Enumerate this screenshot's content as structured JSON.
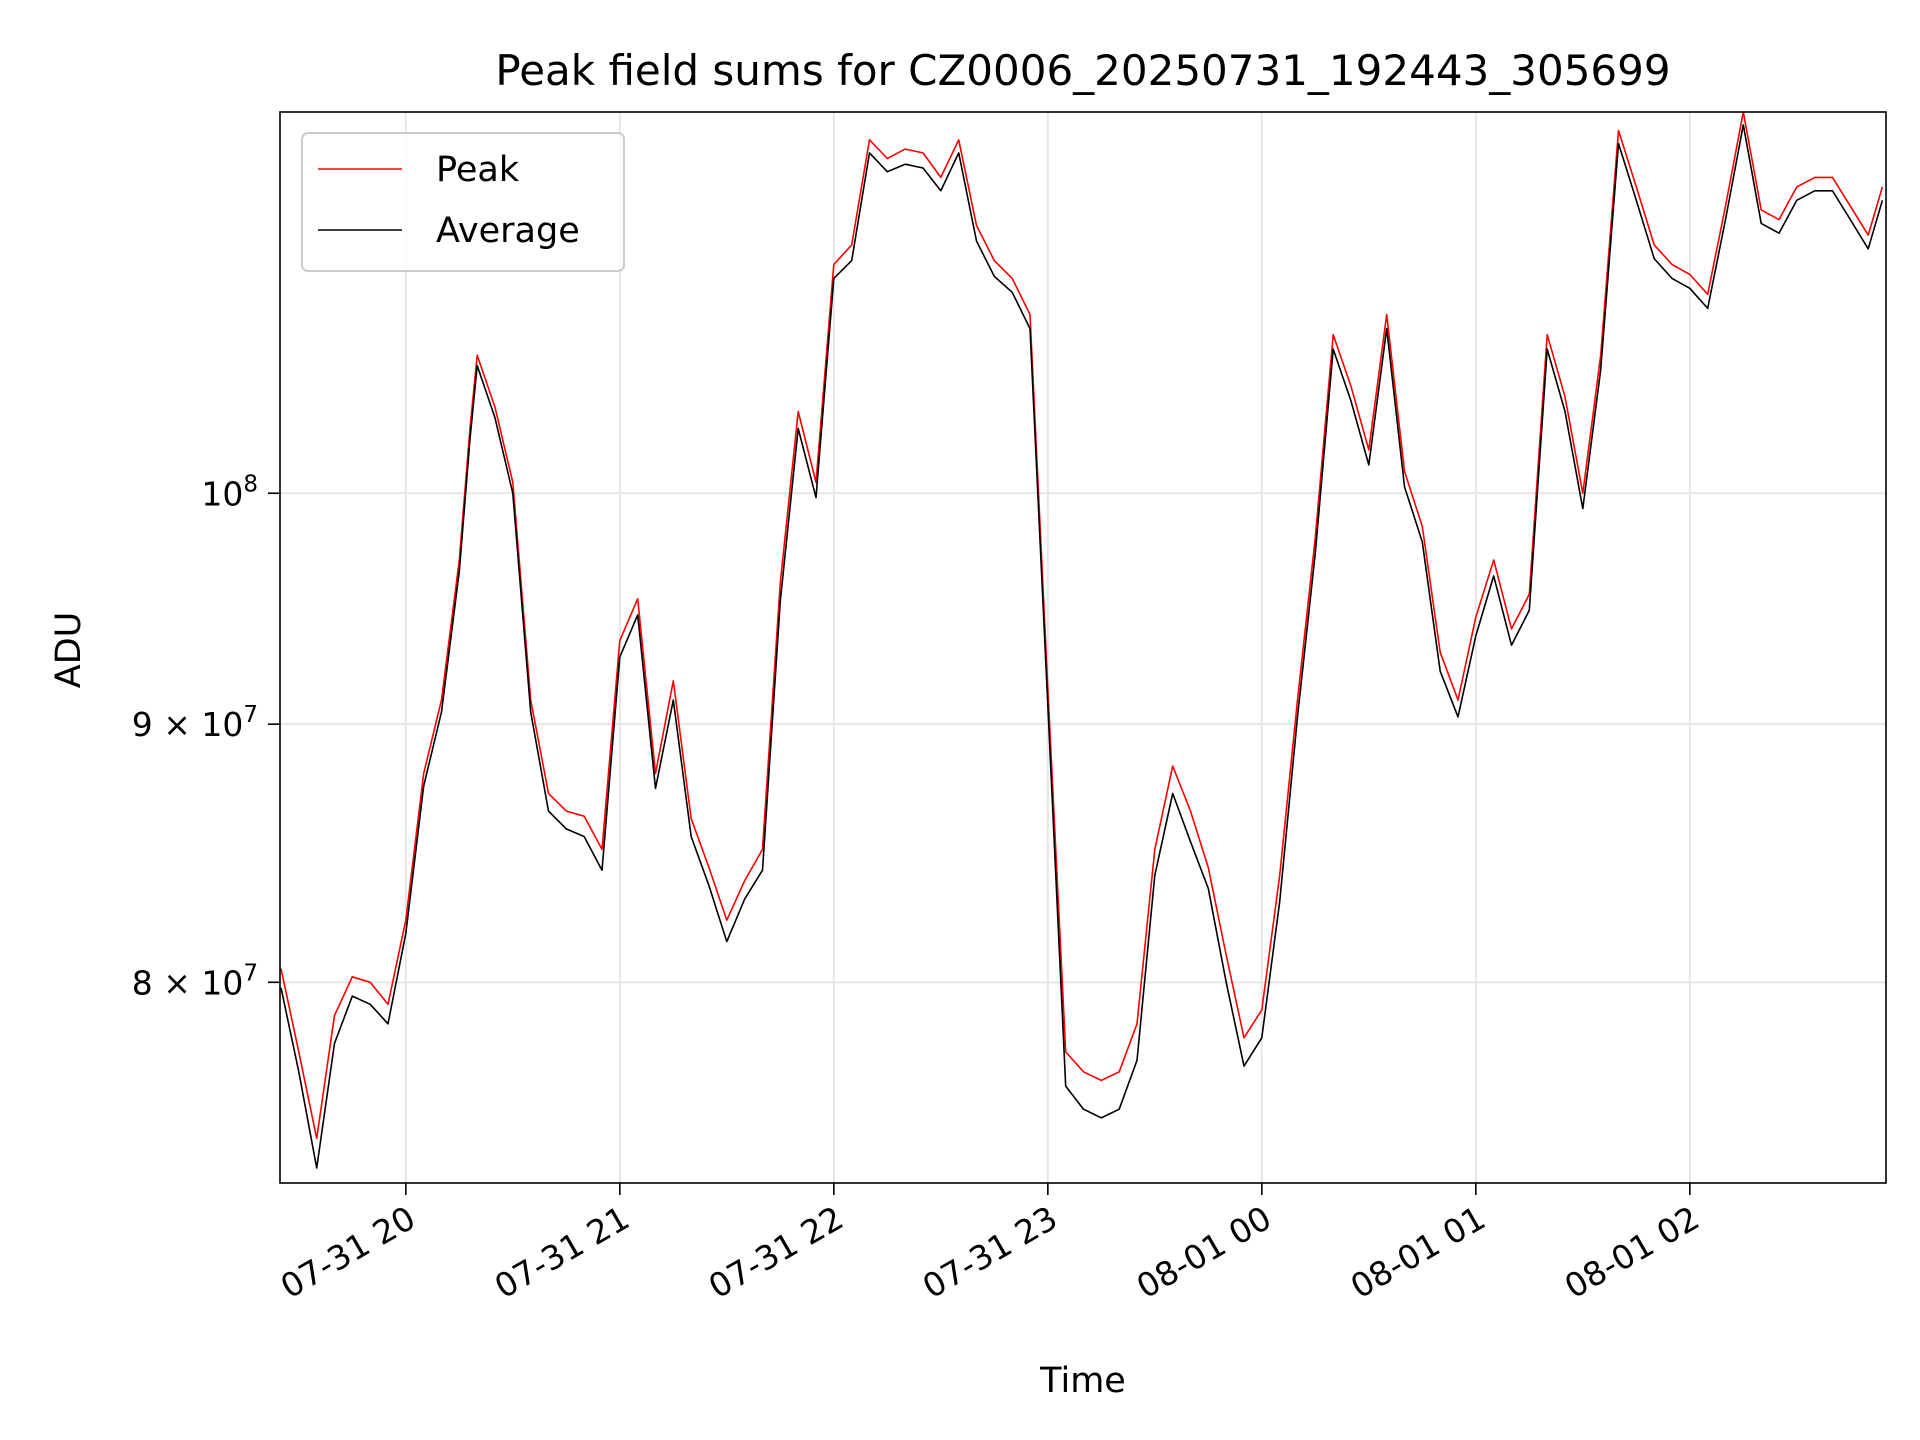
{
  "chart_data": {
    "type": "line",
    "title": "Peak field sums for CZ0006_20250731_192443_305699",
    "xlabel": "Time",
    "ylabel": "ADU",
    "yscale": "log",
    "grid": true,
    "legend_placement": "top-left",
    "xlim": [
      "2025-07-31 19:24:43",
      "2025-08-01 02:55:00"
    ],
    "ylim": [
      73000000,
      119000000
    ],
    "x_ticks": [
      {
        "t": "2025-07-31 20:00",
        "label": "07-31 20"
      },
      {
        "t": "2025-07-31 21:00",
        "label": "07-31 21"
      },
      {
        "t": "2025-07-31 22:00",
        "label": "07-31 22"
      },
      {
        "t": "2025-07-31 23:00",
        "label": "07-31 23"
      },
      {
        "t": "2025-08-01 00:00",
        "label": "08-01 00"
      },
      {
        "t": "2025-08-01 01:00",
        "label": "08-01 01"
      },
      {
        "t": "2025-08-01 02:00",
        "label": "08-01 02"
      }
    ],
    "y_ticks": [
      {
        "value": 80000000,
        "mant": "8",
        "exp": "7"
      },
      {
        "value": 90000000,
        "mant": "9",
        "exp": "7"
      },
      {
        "value": 100000000,
        "mant": "",
        "exp": "8"
      }
    ],
    "series": [
      {
        "name": "Peak",
        "color": "#ff0000",
        "x": [
          "2025-07-31 19:25",
          "2025-07-31 19:30",
          "2025-07-31 19:35",
          "2025-07-31 19:40",
          "2025-07-31 19:45",
          "2025-07-31 19:50",
          "2025-07-31 19:55",
          "2025-07-31 20:00",
          "2025-07-31 20:05",
          "2025-07-31 20:10",
          "2025-07-31 20:15",
          "2025-07-31 20:18",
          "2025-07-31 20:20",
          "2025-07-31 20:25",
          "2025-07-31 20:30",
          "2025-07-31 20:35",
          "2025-07-31 20:40",
          "2025-07-31 20:45",
          "2025-07-31 20:50",
          "2025-07-31 20:55",
          "2025-07-31 21:00",
          "2025-07-31 21:05",
          "2025-07-31 21:10",
          "2025-07-31 21:15",
          "2025-07-31 21:20",
          "2025-07-31 21:25",
          "2025-07-31 21:30",
          "2025-07-31 21:35",
          "2025-07-31 21:40",
          "2025-07-31 21:45",
          "2025-07-31 21:50",
          "2025-07-31 21:55",
          "2025-07-31 22:00",
          "2025-07-31 22:05",
          "2025-07-31 22:10",
          "2025-07-31 22:15",
          "2025-07-31 22:20",
          "2025-07-31 22:25",
          "2025-07-31 22:30",
          "2025-07-31 22:35",
          "2025-07-31 22:40",
          "2025-07-31 22:45",
          "2025-07-31 22:50",
          "2025-07-31 22:55",
          "2025-07-31 23:00",
          "2025-07-31 23:05",
          "2025-07-31 23:10",
          "2025-07-31 23:15",
          "2025-07-31 23:20",
          "2025-07-31 23:25",
          "2025-07-31 23:30",
          "2025-07-31 23:35",
          "2025-07-31 23:40",
          "2025-07-31 23:45",
          "2025-07-31 23:50",
          "2025-07-31 23:55",
          "2025-08-01 00:00",
          "2025-08-01 00:05",
          "2025-08-01 00:10",
          "2025-08-01 00:15",
          "2025-08-01 00:20",
          "2025-08-01 00:25",
          "2025-08-01 00:30",
          "2025-08-01 00:35",
          "2025-08-01 00:40",
          "2025-08-01 00:45",
          "2025-08-01 00:50",
          "2025-08-01 00:55",
          "2025-08-01 01:00",
          "2025-08-01 01:05",
          "2025-08-01 01:10",
          "2025-08-01 01:15",
          "2025-08-01 01:20",
          "2025-08-01 01:25",
          "2025-08-01 01:30",
          "2025-08-01 01:35",
          "2025-08-01 01:40",
          "2025-08-01 01:45",
          "2025-08-01 01:50",
          "2025-08-01 01:55",
          "2025-08-01 02:00",
          "2025-08-01 02:05",
          "2025-08-01 02:10",
          "2025-08-01 02:15",
          "2025-08-01 02:20",
          "2025-08-01 02:25",
          "2025-08-01 02:30",
          "2025-08-01 02:35",
          "2025-08-01 02:40",
          "2025-08-01 02:45",
          "2025-08-01 02:50",
          "2025-08-01 02:54"
        ],
        "y": [
          80500000,
          77500000,
          74500000,
          78800000,
          80200000,
          80000000,
          79200000,
          82300000,
          88000000,
          91000000,
          97000000,
          103000000,
          106500000,
          104000000,
          100500000,
          91000000,
          87200000,
          86500000,
          86300000,
          85000000,
          93500000,
          95300000,
          88000000,
          91800000,
          86200000,
          84300000,
          82300000,
          83800000,
          85000000,
          96000000,
          103800000,
          100500000,
          111000000,
          112000000,
          117500000,
          116500000,
          117000000,
          116800000,
          115500000,
          117500000,
          113000000,
          111200000,
          110300000,
          108500000,
          91500000,
          77500000,
          76800000,
          76500000,
          76800000,
          78500000,
          85000000,
          88300000,
          86500000,
          84300000,
          81000000,
          78000000,
          79000000,
          84000000,
          91000000,
          98000000,
          107500000,
          105000000,
          102000000,
          108500000,
          101000000,
          98500000,
          93000000,
          91000000,
          94500000,
          97000000,
          94000000,
          95500000,
          107500000,
          104500000,
          100000000,
          106500000,
          118000000,
          115000000,
          112000000,
          111000000,
          110500000,
          109500000,
          114000000,
          119000000,
          113800000,
          113300000,
          115000000,
          115500000,
          115500000,
          114000000,
          112500000,
          115000000
        ]
      },
      {
        "name": "Average",
        "color": "#000000",
        "x": [
          "2025-07-31 19:25",
          "2025-07-31 19:30",
          "2025-07-31 19:35",
          "2025-07-31 19:40",
          "2025-07-31 19:45",
          "2025-07-31 19:50",
          "2025-07-31 19:55",
          "2025-07-31 20:00",
          "2025-07-31 20:05",
          "2025-07-31 20:10",
          "2025-07-31 20:15",
          "2025-07-31 20:18",
          "2025-07-31 20:20",
          "2025-07-31 20:25",
          "2025-07-31 20:30",
          "2025-07-31 20:35",
          "2025-07-31 20:40",
          "2025-07-31 20:45",
          "2025-07-31 20:50",
          "2025-07-31 20:55",
          "2025-07-31 21:00",
          "2025-07-31 21:05",
          "2025-07-31 21:10",
          "2025-07-31 21:15",
          "2025-07-31 21:20",
          "2025-07-31 21:25",
          "2025-07-31 21:30",
          "2025-07-31 21:35",
          "2025-07-31 21:40",
          "2025-07-31 21:45",
          "2025-07-31 21:50",
          "2025-07-31 21:55",
          "2025-07-31 22:00",
          "2025-07-31 22:05",
          "2025-07-31 22:10",
          "2025-07-31 22:15",
          "2025-07-31 22:20",
          "2025-07-31 22:25",
          "2025-07-31 22:30",
          "2025-07-31 22:35",
          "2025-07-31 22:40",
          "2025-07-31 22:45",
          "2025-07-31 22:50",
          "2025-07-31 22:55",
          "2025-07-31 23:00",
          "2025-07-31 23:05",
          "2025-07-31 23:10",
          "2025-07-31 23:15",
          "2025-07-31 23:20",
          "2025-07-31 23:25",
          "2025-07-31 23:30",
          "2025-07-31 23:35",
          "2025-07-31 23:40",
          "2025-07-31 23:45",
          "2025-07-31 23:50",
          "2025-07-31 23:55",
          "2025-08-01 00:00",
          "2025-08-01 00:05",
          "2025-08-01 00:10",
          "2025-08-01 00:15",
          "2025-08-01 00:20",
          "2025-08-01 00:25",
          "2025-08-01 00:30",
          "2025-08-01 00:35",
          "2025-08-01 00:40",
          "2025-08-01 00:45",
          "2025-08-01 00:50",
          "2025-08-01 00:55",
          "2025-08-01 01:00",
          "2025-08-01 01:05",
          "2025-08-01 01:10",
          "2025-08-01 01:15",
          "2025-08-01 01:20",
          "2025-08-01 01:25",
          "2025-08-01 01:30",
          "2025-08-01 01:35",
          "2025-08-01 01:40",
          "2025-08-01 01:45",
          "2025-08-01 01:50",
          "2025-08-01 01:55",
          "2025-08-01 02:00",
          "2025-08-01 02:05",
          "2025-08-01 02:10",
          "2025-08-01 02:15",
          "2025-08-01 02:20",
          "2025-08-01 02:25",
          "2025-08-01 02:30",
          "2025-08-01 02:35",
          "2025-08-01 02:40",
          "2025-08-01 02:45",
          "2025-08-01 02:50",
          "2025-08-01 02:54"
        ],
        "y": [
          79800000,
          76800000,
          73500000,
          77800000,
          79500000,
          79200000,
          78500000,
          81800000,
          87500000,
          90500000,
          96500000,
          102500000,
          106000000,
          103500000,
          100000000,
          90500000,
          86500000,
          85800000,
          85500000,
          84200000,
          92800000,
          94600000,
          87400000,
          91000000,
          85500000,
          83600000,
          81500000,
          83100000,
          84200000,
          95200000,
          103000000,
          99800000,
          110300000,
          111200000,
          116800000,
          115800000,
          116200000,
          116000000,
          114800000,
          116800000,
          112200000,
          110400000,
          109600000,
          107800000,
          90800000,
          76300000,
          75500000,
          75200000,
          75500000,
          77200000,
          84000000,
          87200000,
          85300000,
          83500000,
          80000000,
          77000000,
          78000000,
          83000000,
          90300000,
          97300000,
          106800000,
          104300000,
          101300000,
          107800000,
          100300000,
          97800000,
          92200000,
          90300000,
          93700000,
          96300000,
          93300000,
          94800000,
          106800000,
          103800000,
          99300000,
          105800000,
          117300000,
          114300000,
          111300000,
          110300000,
          109800000,
          108800000,
          113300000,
          118300000,
          113100000,
          112600000,
          114300000,
          114800000,
          114800000,
          113300000,
          111800000,
          114300000
        ]
      }
    ]
  }
}
